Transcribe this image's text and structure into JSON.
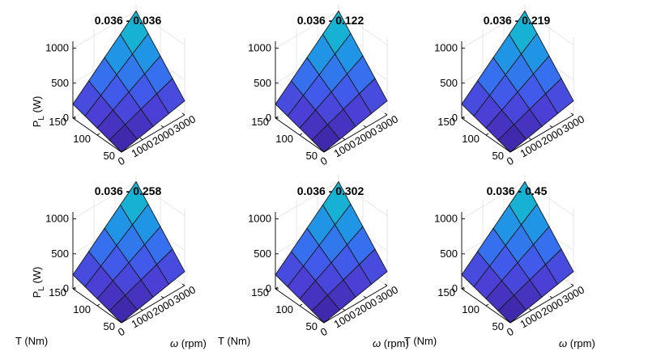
{
  "chart_data": {
    "type": "surface",
    "colormap_colors": [
      "#3b1f9b",
      "#4c3fd6",
      "#3d66f1",
      "#2390e8",
      "#17b0d6",
      "#1ec4b2"
    ],
    "zlabel_main": "P",
    "zlabel_sub": "L",
    "zlabel_unit": "(W)",
    "xlabel": "T (Nm)",
    "ylabel_symbol": "ω",
    "ylabel_unit": "(rpm)",
    "z_ticks": [
      "0",
      "500",
      "1000"
    ],
    "z_range": [
      0,
      1100
    ],
    "T_ticks": [
      "150",
      "100",
      "50"
    ],
    "T_range": [
      50,
      150
    ],
    "T_grid": [
      50,
      75,
      100,
      125,
      150
    ],
    "w_ticks": [
      "0",
      "1000",
      "2000",
      "3000"
    ],
    "w_range": [
      0,
      3000
    ],
    "w_grid": [
      0,
      750,
      1500,
      2250,
      3000
    ],
    "panels": [
      {
        "title": "0.036 - 0.036",
        "P_max": 1000,
        "P_corner_T150_w0": 200,
        "P_corner_T50_w3000": 200
      },
      {
        "title": "0.036 - 0.122",
        "P_max": 1000,
        "P_corner_T150_w0": 200,
        "P_corner_T50_w3000": 200
      },
      {
        "title": "0.036 - 0.219",
        "P_max": 1000,
        "P_corner_T150_w0": 200,
        "P_corner_T50_w3000": 200
      },
      {
        "title": "0.036 - 0.258",
        "P_max": 1000,
        "P_corner_T150_w0": 200,
        "P_corner_T50_w3000": 200
      },
      {
        "title": "0.036 - 0.302",
        "P_max": 1000,
        "P_corner_T150_w0": 200,
        "P_corner_T50_w3000": 200
      },
      {
        "title": "0.036 - 0.45",
        "P_max": 1000,
        "P_corner_T150_w0": 200,
        "P_corner_T50_w3000": 200
      }
    ]
  }
}
